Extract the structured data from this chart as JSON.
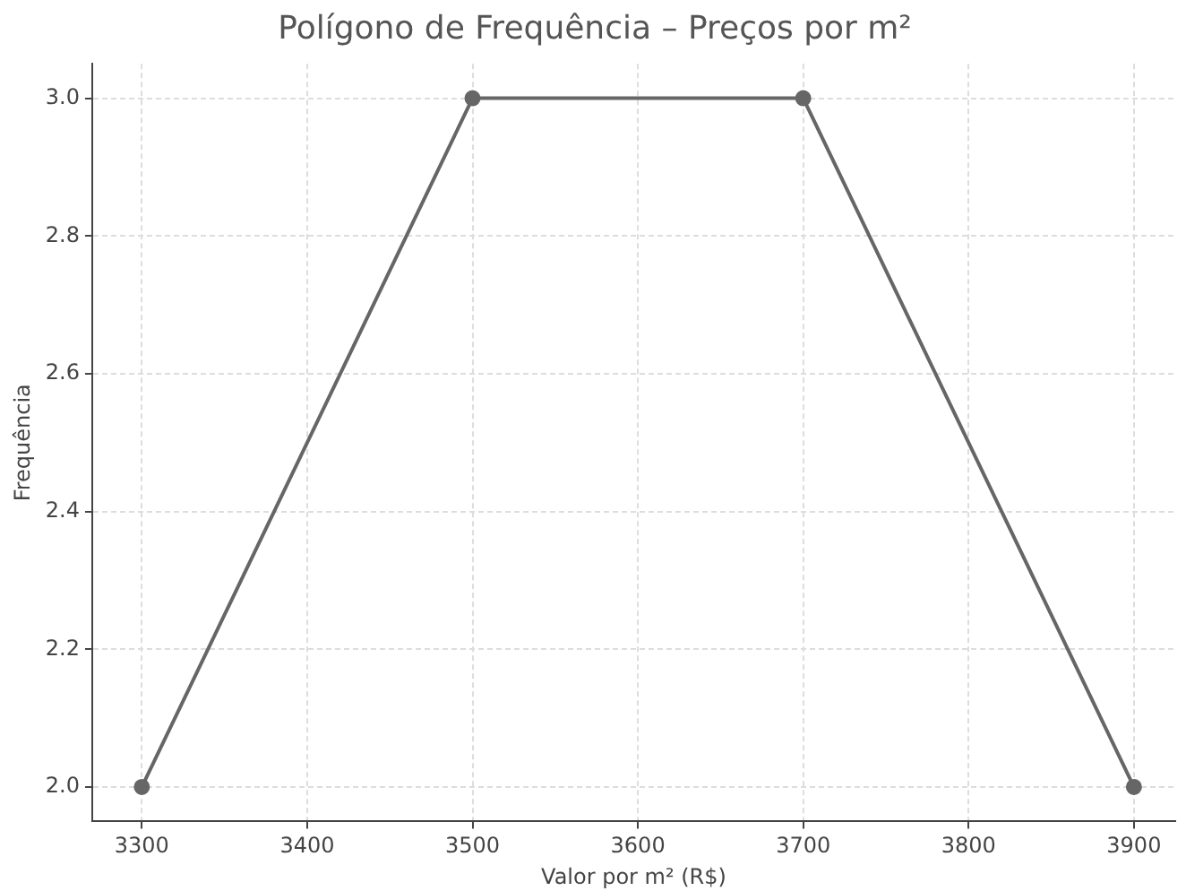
{
  "chart_data": {
    "type": "line",
    "title": "Polígono de Frequência – Preços por m²",
    "xlabel": "Valor por m² (R$)",
    "ylabel": "Frequência",
    "x": [
      3300,
      3500,
      3700,
      3900
    ],
    "series": [
      {
        "color": "#666666",
        "values": [
          2,
          3,
          3,
          2
        ]
      }
    ],
    "xlim": [
      3270,
      3925
    ],
    "ylim": [
      1.95,
      3.05
    ],
    "xticks": [
      3300,
      3400,
      3500,
      3600,
      3700,
      3800,
      3900
    ],
    "yticks": [
      {
        "value": 2,
        "label": "2.0"
      },
      {
        "value": 2.2,
        "label": "2.2"
      },
      {
        "value": 2.4,
        "label": "2.4"
      },
      {
        "value": 2.6,
        "label": "2.6"
      },
      {
        "value": 2.8,
        "label": "2.8"
      },
      {
        "value": 3,
        "label": "3.0"
      }
    ],
    "grid": true,
    "marker": "circle",
    "line_style": "solid",
    "legend": false
  }
}
